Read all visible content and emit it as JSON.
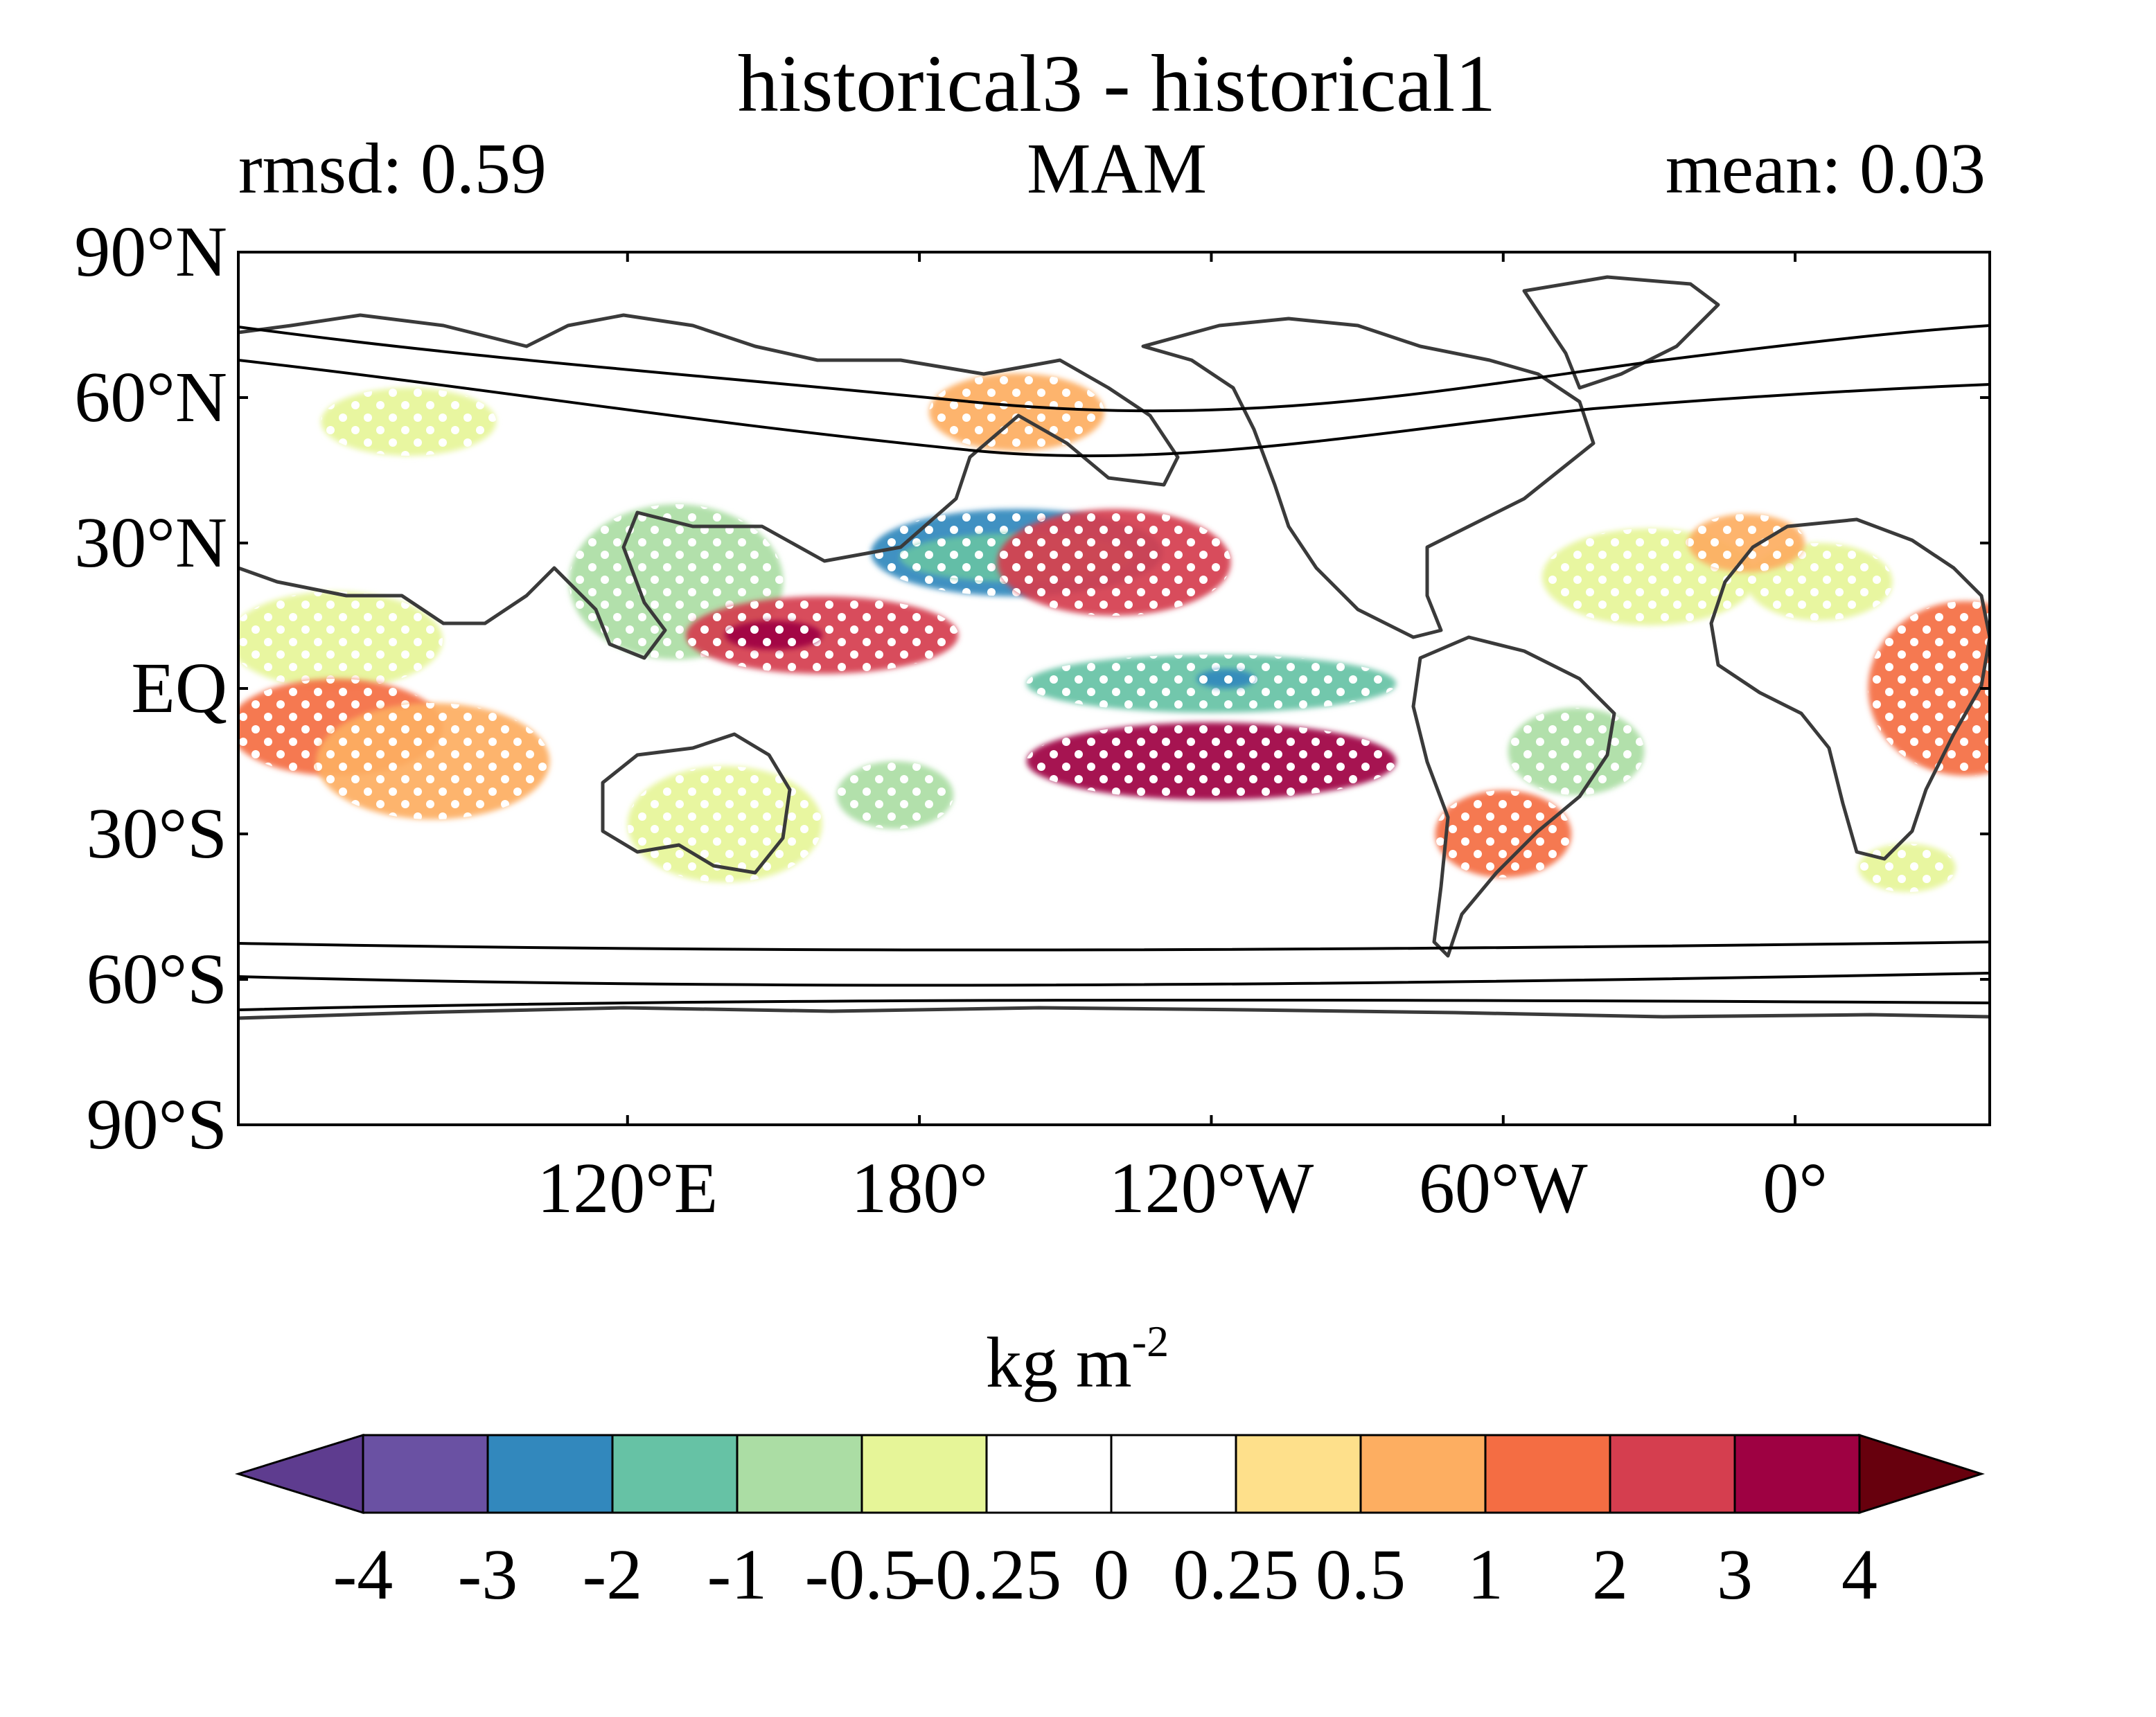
{
  "figure": {
    "title": "historical3 - historical1",
    "left_label": "rmsd: 0.59",
    "center_label": "MAM",
    "right_label": "mean: 0.03"
  },
  "chart_data": {
    "type": "heatmap",
    "title": "historical3 - historical1",
    "subtitle": "MAM",
    "annotations": [
      "rmsd: 0.59",
      "mean: 0.03"
    ],
    "y_ticks": [
      {
        "lat": 90,
        "label": "90°N"
      },
      {
        "lat": 60,
        "label": "60°N"
      },
      {
        "lat": 30,
        "label": "30°N"
      },
      {
        "lat": 0,
        "label": "EQ"
      },
      {
        "lat": -30,
        "label": "30°S"
      },
      {
        "lat": -60,
        "label": "60°S"
      },
      {
        "lat": -90,
        "label": "90°S"
      }
    ],
    "x_ticks": [
      {
        "lon": 120,
        "label": "120°E"
      },
      {
        "lon": 180,
        "label": "180°"
      },
      {
        "lon": 240,
        "label": "120°W"
      },
      {
        "lon": 300,
        "label": "60°W"
      },
      {
        "lon": 360,
        "label": "0°"
      }
    ],
    "lon_range": [
      40,
      400
    ],
    "lat_range": [
      -90,
      90
    ],
    "colorbar": {
      "unit_base": "kg m",
      "unit_exp": "-2",
      "tick_labels": [
        "-4",
        "-3",
        "-2",
        "-1",
        "-0.5",
        "-0.25",
        "0",
        "0.25",
        "0.5",
        "1",
        "2",
        "3",
        "4"
      ],
      "colors": [
        "#5e3c8f",
        "#6a51a3",
        "#3288bd",
        "#66c2a5",
        "#abdda4",
        "#e6f598",
        "#ffffff",
        "#ffffff",
        "#fee08b",
        "#fdae61",
        "#f46d43",
        "#d53e4f",
        "#9e0142",
        "#67000d"
      ],
      "extend": "both"
    },
    "anomaly_regions": [
      {
        "lon": 200,
        "lat": 28,
        "value": -3,
        "rlon": 30,
        "rlat": 9
      },
      {
        "lon": 200,
        "lat": 27,
        "value": -2,
        "rlon": 24,
        "rlat": 5
      },
      {
        "lon": 240,
        "lat": 1,
        "value": -2,
        "rlon": 38,
        "rlat": 6
      },
      {
        "lon": 243,
        "lat": 2,
        "value": -3,
        "rlon": 6,
        "rlat": 2
      },
      {
        "lon": 130,
        "lat": 22,
        "value": -1,
        "rlon": 22,
        "rlat": 16
      },
      {
        "lon": 60,
        "lat": 10,
        "value": -0.5,
        "rlon": 22,
        "rlat": 10
      },
      {
        "lon": 330,
        "lat": 23,
        "value": -0.5,
        "rlon": 22,
        "rlat": 10
      },
      {
        "lon": 315,
        "lat": -13,
        "value": -1,
        "rlon": 14,
        "rlat": 9
      },
      {
        "lon": 140,
        "lat": -28,
        "value": -0.5,
        "rlon": 20,
        "rlat": 12
      },
      {
        "lon": 175,
        "lat": -22,
        "value": -1,
        "rlon": 12,
        "rlat": 7
      },
      {
        "lon": 365,
        "lat": 22,
        "value": -0.5,
        "rlon": 15,
        "rlat": 8
      },
      {
        "lon": 383,
        "lat": -37,
        "value": -0.5,
        "rlon": 10,
        "rlat": 5
      },
      {
        "lon": 75,
        "lat": 55,
        "value": -0.5,
        "rlon": 18,
        "rlat": 7
      },
      {
        "lon": 220,
        "lat": 26,
        "value": 2,
        "rlon": 24,
        "rlat": 11
      },
      {
        "lon": 160,
        "lat": 11,
        "value": 2,
        "rlon": 28,
        "rlat": 8
      },
      {
        "lon": 240,
        "lat": -15,
        "value": 3,
        "rlon": 38,
        "rlat": 8
      },
      {
        "lon": 150,
        "lat": 11,
        "value": 3,
        "rlon": 10,
        "rlat": 3
      },
      {
        "lon": 60,
        "lat": -8,
        "value": 1,
        "rlon": 22,
        "rlat": 10
      },
      {
        "lon": 80,
        "lat": -15,
        "value": 0.5,
        "rlon": 24,
        "rlat": 12
      },
      {
        "lon": 395,
        "lat": 0,
        "value": 1,
        "rlon": 20,
        "rlat": 18
      },
      {
        "lon": 300,
        "lat": -30,
        "value": 1,
        "rlon": 14,
        "rlat": 9
      },
      {
        "lon": 200,
        "lat": 57,
        "value": 0.5,
        "rlon": 18,
        "rlat": 8
      },
      {
        "lon": 350,
        "lat": 30,
        "value": 0.5,
        "rlon": 12,
        "rlat": 6
      }
    ],
    "stippling": "white dots mark statistically significant grid cells"
  }
}
